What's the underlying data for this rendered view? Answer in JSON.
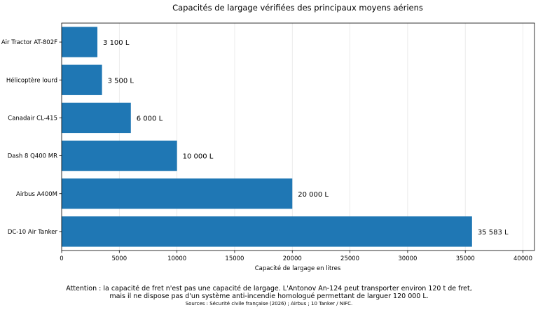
{
  "chart_data": {
    "type": "bar",
    "orientation": "horizontal",
    "title": "Capacités de largage vérifiées des principaux moyens aériens",
    "xlabel": "Capacité de largage en litres",
    "ylabel": "",
    "xlim": [
      0,
      41000
    ],
    "xticks": [
      0,
      5000,
      10000,
      15000,
      20000,
      25000,
      30000,
      35000,
      40000
    ],
    "xtick_labels": [
      "0",
      "5000",
      "10000",
      "15000",
      "20000",
      "25000",
      "30000",
      "35000",
      "40000"
    ],
    "grid": "vertical",
    "bar_color": "#1f77b4",
    "categories": [
      "DC-10 Air Tanker",
      "Airbus A400M",
      "Dash 8 Q400 MR",
      "Canadair CL-415",
      "Hélicoptère lourd",
      "Air Tractor AT-802F"
    ],
    "values": [
      35583,
      20000,
      10000,
      6000,
      3500,
      3100
    ],
    "value_labels": [
      "35 583 L",
      "20 000 L",
      "10 000 L",
      "6 000 L",
      "3 500 L",
      "3 100 L"
    ]
  },
  "notes": {
    "line1": "Attention : la capacité de fret n'est pas une capacité de largage. L'Antonov An-124 peut transporter environ 120 t de fret,",
    "line2": "mais il ne dispose pas d'un système anti-incendie homologué permettant de larguer 120 000 L.",
    "sources": "Sources : Sécurité civile française (2026) ; Airbus ; 10 Tanker / NIFC."
  }
}
